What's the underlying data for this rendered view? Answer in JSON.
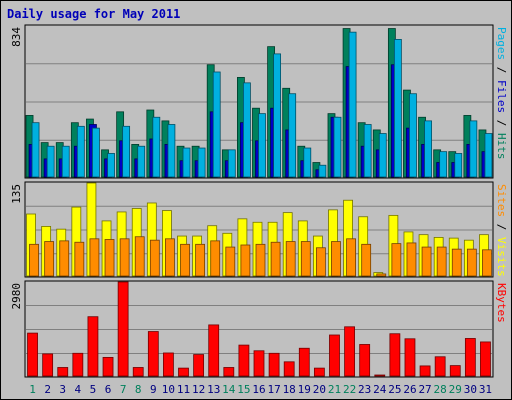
{
  "chart_data": {
    "type": "bar",
    "title": "Daily usage for May 2011",
    "categories": [
      "1",
      "2",
      "3",
      "4",
      "5",
      "6",
      "7",
      "8",
      "9",
      "10",
      "11",
      "12",
      "13",
      "14",
      "15",
      "16",
      "17",
      "18",
      "19",
      "20",
      "21",
      "22",
      "23",
      "24",
      "25",
      "26",
      "27",
      "28",
      "29",
      "30",
      "31"
    ],
    "weekend_days": [
      "1",
      "7",
      "8",
      "14",
      "15",
      "21",
      "22",
      "28",
      "29"
    ],
    "panels": [
      {
        "id": "hits",
        "ylim": [
          0,
          834
        ],
        "max_label": "834",
        "right_label": [
          {
            "text": "Pages",
            "color": "#00b0e0"
          },
          {
            "text": " / ",
            "color": "#000000"
          },
          {
            "text": "Files",
            "color": "#0000c8"
          },
          {
            "text": " / ",
            "color": "#000000"
          },
          {
            "text": "Hits",
            "color": "#00805c"
          }
        ],
        "series": [
          {
            "name": "Hits",
            "color": "#00805c",
            "values": [
              340,
              190,
              190,
              300,
              320,
              150,
              360,
              180,
              370,
              310,
              170,
              170,
              620,
              150,
              550,
              380,
              720,
              490,
              170,
              80,
              350,
              820,
              300,
              260,
              820,
              480,
              330,
              150,
              140,
              340,
              260
            ]
          },
          {
            "name": "Files",
            "color": "#0000c8",
            "values": [
              180,
              100,
              100,
              170,
              290,
              100,
              200,
              100,
              210,
              180,
              90,
              90,
              360,
              90,
              300,
              200,
              380,
              260,
              90,
              40,
              330,
              610,
              170,
              150,
              620,
              270,
              180,
              80,
              80,
              180,
              140
            ]
          },
          {
            "name": "Pages",
            "color": "#00b0e0",
            "values": [
              300,
              170,
              170,
              280,
              270,
              130,
              280,
              170,
              330,
              290,
              160,
              160,
              580,
              150,
              520,
              350,
              680,
              460,
              160,
              65,
              330,
              800,
              290,
              240,
              760,
              460,
              310,
              140,
              130,
              310,
              240
            ]
          }
        ]
      },
      {
        "id": "visits",
        "ylim": [
          0,
          135
        ],
        "max_label": "135",
        "right_label": [
          {
            "text": "Sites",
            "color": "#ff8c00"
          },
          {
            "text": " / ",
            "color": "#000000"
          },
          {
            "text": "Visits",
            "color": "#ffff00"
          }
        ],
        "series": [
          {
            "name": "Visits",
            "color": "#ffff00",
            "values": [
              90,
              72,
              68,
              100,
              135,
              80,
              93,
              98,
              106,
              95,
              58,
              58,
              73,
              62,
              83,
              78,
              78,
              92,
              80,
              58,
              96,
              110,
              86,
              5,
              88,
              64,
              60,
              56,
              55,
              52,
              60
            ]
          },
          {
            "name": "Sites",
            "color": "#ff8c00",
            "values": [
              46,
              50,
              51,
              49,
              54,
              53,
              54,
              57,
              52,
              54,
              46,
              46,
              51,
              42,
              45,
              46,
              49,
              50,
              50,
              41,
              50,
              54,
              46,
              3,
              47,
              48,
              42,
              42,
              39,
              39,
              38
            ]
          }
        ]
      },
      {
        "id": "kbytes",
        "ylim": [
          0,
          2980
        ],
        "max_label": "2980",
        "right_label": [
          {
            "text": "KBytes",
            "color": "#ff0000"
          }
        ],
        "series": [
          {
            "name": "KBytes",
            "color": "#ff0000",
            "values": [
              1360,
              700,
              270,
              720,
              1880,
              590,
              2980,
              270,
              1410,
              730,
              250,
              680,
              1620,
              270,
              980,
              800,
              720,
              450,
              880,
              250,
              1300,
              1560,
              1000,
              20,
              1340,
              1180,
              320,
              610,
              330,
              1190,
              1080
            ]
          }
        ]
      }
    ]
  }
}
